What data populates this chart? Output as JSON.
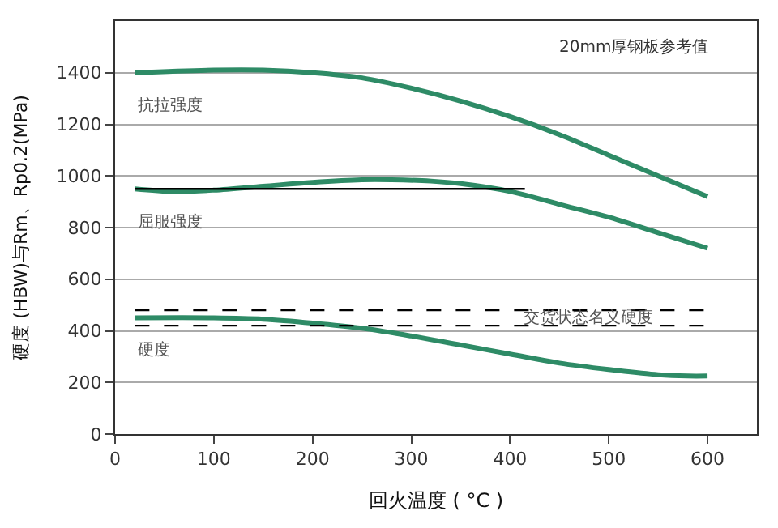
{
  "chart_data": {
    "type": "line",
    "xlabel": "回火温度 ( °C )",
    "ylabel": "硬度 (HBW)与Rm、Rp0.2(MPa)",
    "xlim": [
      0,
      650
    ],
    "xticks": [
      0,
      100,
      200,
      300,
      400,
      500,
      600
    ],
    "ylim": [
      0,
      1600
    ],
    "yticks": [
      0,
      200,
      400,
      600,
      800,
      1000,
      1200,
      1400
    ],
    "grid": "y",
    "marker": "none",
    "series": [
      {
        "name": "抗拉强度",
        "color": "#2e8b66",
        "x": [
          20,
          100,
          150,
          200,
          250,
          300,
          350,
          400,
          450,
          500,
          550,
          600
        ],
        "values": [
          1400,
          1410,
          1410,
          1400,
          1380,
          1340,
          1290,
          1230,
          1160,
          1080,
          1000,
          920
        ]
      },
      {
        "name": "屈服强度",
        "color": "#2e8b66",
        "x": [
          20,
          60,
          100,
          150,
          200,
          250,
          280,
          320,
          350,
          400,
          450,
          500,
          550,
          600
        ],
        "values": [
          950,
          940,
          945,
          960,
          975,
          985,
          985,
          980,
          970,
          940,
          890,
          840,
          780,
          720
        ]
      },
      {
        "color": "#000000",
        "x": [
          20,
          415
        ],
        "values": [
          950,
          950
        ]
      },
      {
        "name": "硬度",
        "color": "#2e8b66",
        "x": [
          20,
          100,
          150,
          200,
          250,
          300,
          350,
          400,
          450,
          500,
          550,
          580,
          600
        ],
        "values": [
          450,
          450,
          445,
          430,
          410,
          380,
          345,
          310,
          275,
          250,
          230,
          225,
          225
        ]
      },
      {
        "color": "#000000",
        "line_style": "dashed",
        "x": [
          20,
          600
        ],
        "values": [
          480,
          480
        ]
      },
      {
        "color": "#000000",
        "line_style": "dashed",
        "x": [
          20,
          600
        ],
        "values": [
          420,
          420
        ]
      }
    ],
    "annotations": [
      "20mm厚钢板参考值",
      {
        "text": "交货状态名义硬度",
        "x": 410,
        "y": 450
      }
    ]
  }
}
